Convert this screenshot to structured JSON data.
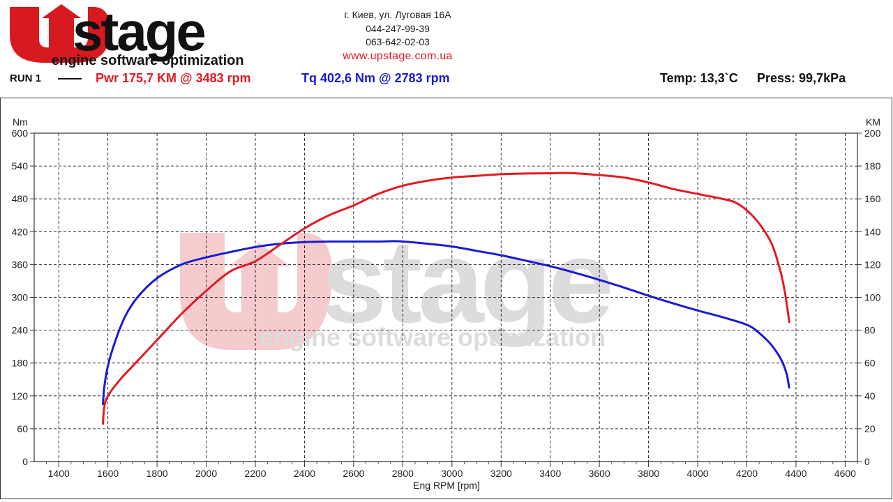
{
  "header": {
    "logo_brand": "Upstage",
    "logo_tagline": "engine software optimization",
    "address": "г. Киев, ул. Луговая 16А",
    "phone1": "044-247-99-39",
    "phone2": "063-642-02-03",
    "website": "www.upstage.com.ua"
  },
  "run": {
    "label": "RUN 1",
    "pwr_text": "Pwr  175,7 KM @ 3483 rpm",
    "tq_text": "Tq 402,6 Nm @ 2783 rpm",
    "temp_text": "Temp: 13,3`C",
    "press_text": "Press: 99,7kPa"
  },
  "colors": {
    "power": "#e11b22",
    "torque": "#1a1ad6",
    "grid": "#000000"
  },
  "chart_data": {
    "type": "line",
    "xlabel": "Eng RPM [rpm]",
    "ylabel_left": "Nm",
    "ylabel_right": "KM",
    "xlim": [
      1300,
      4650
    ],
    "ylim_left": [
      0,
      600
    ],
    "ylim_right": [
      0,
      200
    ],
    "x_ticks": [
      1400,
      1600,
      1800,
      2000,
      2200,
      2400,
      2600,
      2800,
      3000,
      3200,
      3400,
      3600,
      3800,
      4000,
      4200,
      4400,
      4600
    ],
    "y_ticks_left": [
      0,
      60,
      120,
      180,
      240,
      300,
      360,
      420,
      480,
      540,
      600
    ],
    "y_ticks_right": [
      0,
      20,
      40,
      60,
      80,
      100,
      120,
      140,
      160,
      180,
      200
    ],
    "grid": true,
    "series": [
      {
        "axis": "left",
        "color": "#1a1ad6",
        "points": [
          [
            1580,
            105
          ],
          [
            1585,
            135
          ],
          [
            1600,
            175
          ],
          [
            1630,
            220
          ],
          [
            1670,
            265
          ],
          [
            1720,
            300
          ],
          [
            1800,
            335
          ],
          [
            1900,
            360
          ],
          [
            2000,
            373
          ],
          [
            2100,
            383
          ],
          [
            2200,
            392
          ],
          [
            2300,
            398
          ],
          [
            2400,
            401
          ],
          [
            2500,
            402
          ],
          [
            2600,
            402
          ],
          [
            2700,
            402
          ],
          [
            2783,
            402.6
          ],
          [
            2900,
            398
          ],
          [
            3000,
            393
          ],
          [
            3100,
            385
          ],
          [
            3200,
            377
          ],
          [
            3300,
            367
          ],
          [
            3400,
            357
          ],
          [
            3500,
            345
          ],
          [
            3600,
            332
          ],
          [
            3700,
            318
          ],
          [
            3800,
            303
          ],
          [
            3900,
            289
          ],
          [
            4000,
            276
          ],
          [
            4100,
            264
          ],
          [
            4200,
            250
          ],
          [
            4250,
            235
          ],
          [
            4300,
            213
          ],
          [
            4340,
            186
          ],
          [
            4362,
            160
          ],
          [
            4372,
            135
          ]
        ]
      },
      {
        "axis": "right",
        "color": "#e11b22",
        "points": [
          [
            1580,
            23
          ],
          [
            1585,
            33
          ],
          [
            1600,
            40
          ],
          [
            1650,
            50
          ],
          [
            1700,
            58
          ],
          [
            1800,
            74
          ],
          [
            1900,
            90
          ],
          [
            2000,
            104
          ],
          [
            2100,
            116
          ],
          [
            2200,
            122
          ],
          [
            2300,
            132
          ],
          [
            2400,
            142
          ],
          [
            2500,
            150
          ],
          [
            2600,
            156
          ],
          [
            2700,
            163
          ],
          [
            2800,
            168
          ],
          [
            2900,
            171
          ],
          [
            3000,
            173
          ],
          [
            3100,
            174
          ],
          [
            3200,
            175
          ],
          [
            3300,
            175.4
          ],
          [
            3400,
            175.6
          ],
          [
            3483,
            175.7
          ],
          [
            3600,
            174.5
          ],
          [
            3700,
            173
          ],
          [
            3800,
            170
          ],
          [
            3900,
            166
          ],
          [
            4000,
            163
          ],
          [
            4100,
            160
          ],
          [
            4150,
            158
          ],
          [
            4200,
            153
          ],
          [
            4250,
            145
          ],
          [
            4300,
            133
          ],
          [
            4335,
            117
          ],
          [
            4355,
            103
          ],
          [
            4368,
            90
          ],
          [
            4373,
            85
          ]
        ]
      }
    ]
  }
}
